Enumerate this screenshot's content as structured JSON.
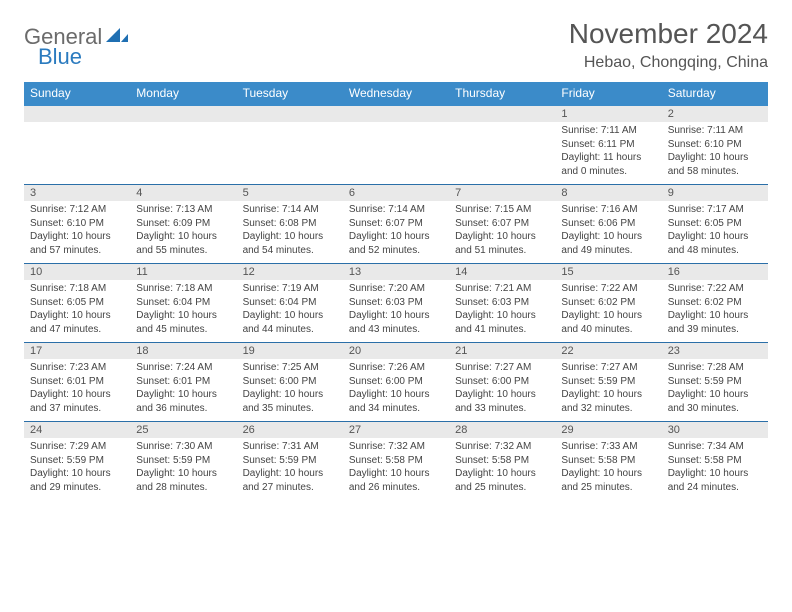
{
  "logo": {
    "part1": "General",
    "part2": "Blue"
  },
  "title": "November 2024",
  "location": "Hebao, Chongqing, China",
  "colors": {
    "header_bg": "#3b8bc9",
    "header_text": "#ffffff",
    "daynum_bg": "#e9e9e9",
    "border": "#2b6fa8",
    "logo_gray": "#6b6b6b",
    "logo_blue": "#2b7bbf"
  },
  "typography": {
    "title_fontsize": 28,
    "location_fontsize": 16,
    "dayheader_fontsize": 12,
    "daynum_fontsize": 11,
    "detail_fontsize": 10
  },
  "day_headers": [
    "Sunday",
    "Monday",
    "Tuesday",
    "Wednesday",
    "Thursday",
    "Friday",
    "Saturday"
  ],
  "weeks": [
    [
      null,
      null,
      null,
      null,
      null,
      {
        "n": "1",
        "sunrise": "7:11 AM",
        "sunset": "6:11 PM",
        "daylight": "11 hours and 0 minutes."
      },
      {
        "n": "2",
        "sunrise": "7:11 AM",
        "sunset": "6:10 PM",
        "daylight": "10 hours and 58 minutes."
      }
    ],
    [
      {
        "n": "3",
        "sunrise": "7:12 AM",
        "sunset": "6:10 PM",
        "daylight": "10 hours and 57 minutes."
      },
      {
        "n": "4",
        "sunrise": "7:13 AM",
        "sunset": "6:09 PM",
        "daylight": "10 hours and 55 minutes."
      },
      {
        "n": "5",
        "sunrise": "7:14 AM",
        "sunset": "6:08 PM",
        "daylight": "10 hours and 54 minutes."
      },
      {
        "n": "6",
        "sunrise": "7:14 AM",
        "sunset": "6:07 PM",
        "daylight": "10 hours and 52 minutes."
      },
      {
        "n": "7",
        "sunrise": "7:15 AM",
        "sunset": "6:07 PM",
        "daylight": "10 hours and 51 minutes."
      },
      {
        "n": "8",
        "sunrise": "7:16 AM",
        "sunset": "6:06 PM",
        "daylight": "10 hours and 49 minutes."
      },
      {
        "n": "9",
        "sunrise": "7:17 AM",
        "sunset": "6:05 PM",
        "daylight": "10 hours and 48 minutes."
      }
    ],
    [
      {
        "n": "10",
        "sunrise": "7:18 AM",
        "sunset": "6:05 PM",
        "daylight": "10 hours and 47 minutes."
      },
      {
        "n": "11",
        "sunrise": "7:18 AM",
        "sunset": "6:04 PM",
        "daylight": "10 hours and 45 minutes."
      },
      {
        "n": "12",
        "sunrise": "7:19 AM",
        "sunset": "6:04 PM",
        "daylight": "10 hours and 44 minutes."
      },
      {
        "n": "13",
        "sunrise": "7:20 AM",
        "sunset": "6:03 PM",
        "daylight": "10 hours and 43 minutes."
      },
      {
        "n": "14",
        "sunrise": "7:21 AM",
        "sunset": "6:03 PM",
        "daylight": "10 hours and 41 minutes."
      },
      {
        "n": "15",
        "sunrise": "7:22 AM",
        "sunset": "6:02 PM",
        "daylight": "10 hours and 40 minutes."
      },
      {
        "n": "16",
        "sunrise": "7:22 AM",
        "sunset": "6:02 PM",
        "daylight": "10 hours and 39 minutes."
      }
    ],
    [
      {
        "n": "17",
        "sunrise": "7:23 AM",
        "sunset": "6:01 PM",
        "daylight": "10 hours and 37 minutes."
      },
      {
        "n": "18",
        "sunrise": "7:24 AM",
        "sunset": "6:01 PM",
        "daylight": "10 hours and 36 minutes."
      },
      {
        "n": "19",
        "sunrise": "7:25 AM",
        "sunset": "6:00 PM",
        "daylight": "10 hours and 35 minutes."
      },
      {
        "n": "20",
        "sunrise": "7:26 AM",
        "sunset": "6:00 PM",
        "daylight": "10 hours and 34 minutes."
      },
      {
        "n": "21",
        "sunrise": "7:27 AM",
        "sunset": "6:00 PM",
        "daylight": "10 hours and 33 minutes."
      },
      {
        "n": "22",
        "sunrise": "7:27 AM",
        "sunset": "5:59 PM",
        "daylight": "10 hours and 32 minutes."
      },
      {
        "n": "23",
        "sunrise": "7:28 AM",
        "sunset": "5:59 PM",
        "daylight": "10 hours and 30 minutes."
      }
    ],
    [
      {
        "n": "24",
        "sunrise": "7:29 AM",
        "sunset": "5:59 PM",
        "daylight": "10 hours and 29 minutes."
      },
      {
        "n": "25",
        "sunrise": "7:30 AM",
        "sunset": "5:59 PM",
        "daylight": "10 hours and 28 minutes."
      },
      {
        "n": "26",
        "sunrise": "7:31 AM",
        "sunset": "5:59 PM",
        "daylight": "10 hours and 27 minutes."
      },
      {
        "n": "27",
        "sunrise": "7:32 AM",
        "sunset": "5:58 PM",
        "daylight": "10 hours and 26 minutes."
      },
      {
        "n": "28",
        "sunrise": "7:32 AM",
        "sunset": "5:58 PM",
        "daylight": "10 hours and 25 minutes."
      },
      {
        "n": "29",
        "sunrise": "7:33 AM",
        "sunset": "5:58 PM",
        "daylight": "10 hours and 25 minutes."
      },
      {
        "n": "30",
        "sunrise": "7:34 AM",
        "sunset": "5:58 PM",
        "daylight": "10 hours and 24 minutes."
      }
    ]
  ],
  "labels": {
    "sunrise": "Sunrise:",
    "sunset": "Sunset:",
    "daylight": "Daylight:"
  }
}
